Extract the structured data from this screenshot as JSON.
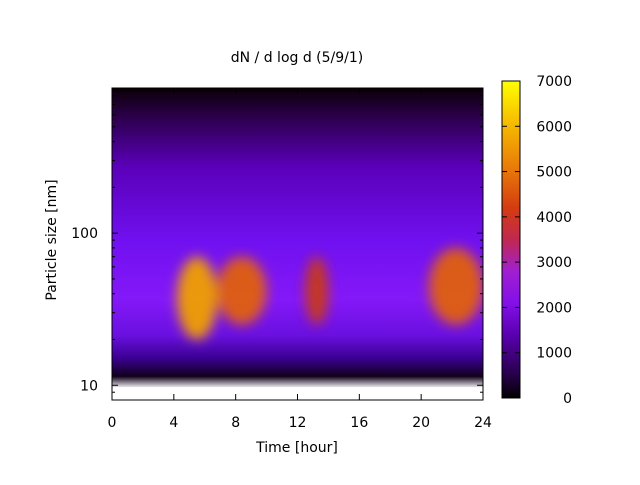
{
  "chart_data": {
    "type": "heatmap",
    "title": "dN / d log d (5/9/1)",
    "xlabel": "Time [hour]",
    "ylabel": "Particle size [nm]",
    "xlim": [
      0,
      24
    ],
    "ylim": [
      8,
      900
    ],
    "yscale": "log",
    "x_ticks": [
      0,
      4,
      8,
      12,
      16,
      20,
      24
    ],
    "x_tick_labels": [
      "0",
      "4",
      "8",
      "12",
      "16",
      "20",
      "24"
    ],
    "y_ticks": [
      10,
      100
    ],
    "y_tick_labels": [
      "10",
      "100"
    ],
    "colorbar": {
      "range": [
        0,
        7000
      ],
      "ticks": [
        0,
        1000,
        2000,
        3000,
        4000,
        5000,
        6000,
        7000
      ],
      "tick_labels": [
        "0",
        "1000",
        "2000",
        "3000",
        "4000",
        "5000",
        "6000",
        "7000"
      ],
      "colormap": [
        "#000000",
        "#3a0077",
        "#6a00d8",
        "#8f1cf2",
        "#b8208e",
        "#cf3c12",
        "#e8780a",
        "#f5c000",
        "#ffff00"
      ]
    },
    "grid": false,
    "features": [
      {
        "time_range": [
          4.2,
          6.8
        ],
        "size_range": [
          20,
          70
        ],
        "peak_value": 6000
      },
      {
        "time_range": [
          6.8,
          10.0
        ],
        "size_range": [
          25,
          70
        ],
        "peak_value": 4500
      },
      {
        "time_range": [
          12.5,
          14.0
        ],
        "size_range": [
          25,
          70
        ],
        "peak_value": 3500
      },
      {
        "time_range": [
          20.5,
          24.0
        ],
        "size_range": [
          25,
          80
        ],
        "peak_value": 5000
      }
    ]
  }
}
